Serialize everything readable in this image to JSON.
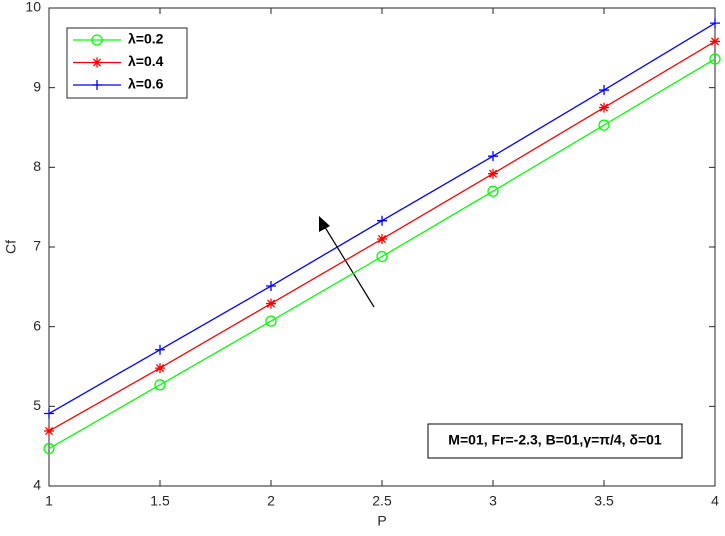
{
  "chart_data": {
    "type": "line",
    "xlabel": "P",
    "ylabel": "Cf",
    "x": [
      1,
      1.5,
      2,
      2.5,
      3,
      3.5,
      4
    ],
    "series": [
      {
        "name": "λ=0.2",
        "color": "#00ff00",
        "marker": "circle",
        "values": [
          4.47,
          5.27,
          6.07,
          6.88,
          7.7,
          8.53,
          9.36
        ]
      },
      {
        "name": "λ=0.4",
        "color": "#ff0000",
        "marker": "asterisk",
        "values": [
          4.69,
          5.48,
          6.29,
          7.1,
          7.92,
          8.75,
          9.58
        ]
      },
      {
        "name": "λ=0.6",
        "color": "#0000ff",
        "marker": "plus",
        "values": [
          4.91,
          5.71,
          6.51,
          7.33,
          8.14,
          8.97,
          9.81
        ]
      }
    ],
    "xlim": [
      1,
      4
    ],
    "xticks": [
      1,
      1.5,
      2,
      2.5,
      3,
      3.5,
      4
    ],
    "ylim": [
      4,
      10
    ],
    "yticks": [
      4,
      5,
      6,
      7,
      8,
      9,
      10
    ],
    "grid": false,
    "legend": "upper-left",
    "annotation": "M=01, Fr=-2.3, B=01,γ=π/4, δ=01"
  }
}
